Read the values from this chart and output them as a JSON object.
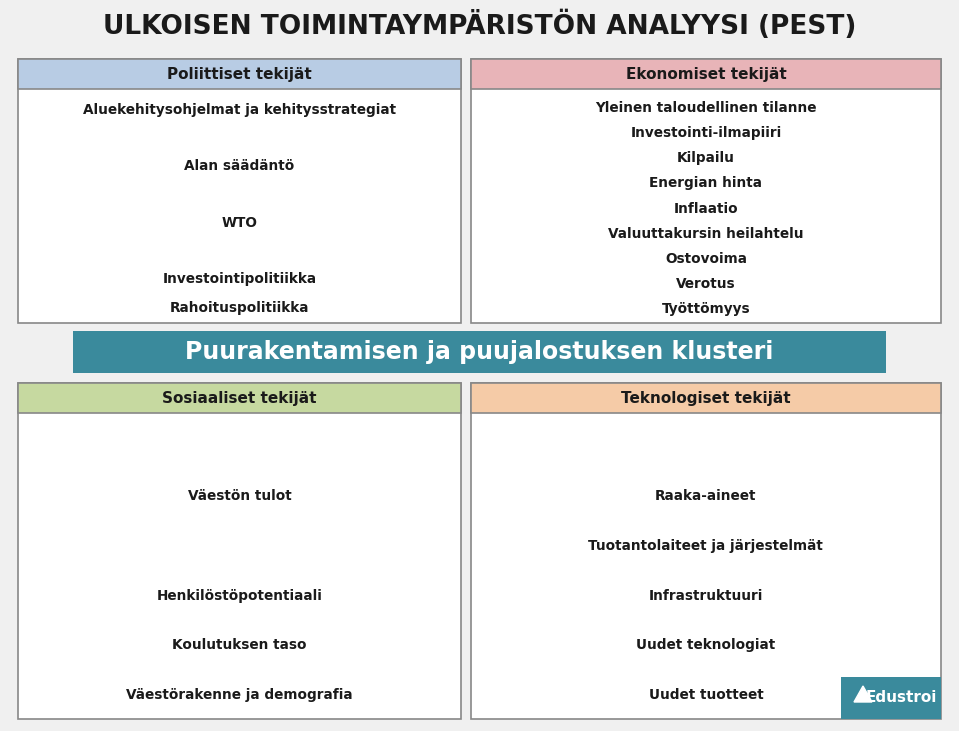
{
  "title": "ULKOISEN TOIMINTAYMPÄRISTÖN ANALYYSI (PEST)",
  "title_fontsize": 19,
  "bg_color": "#f0f0f0",
  "political_header": "Poliittiset tekijät",
  "political_header_bg": "#b8cce4",
  "political_items": [
    "Aluekehitysohjelmat ja kehitysstrategiat",
    "",
    "Alan säädäntö",
    "",
    "WTO",
    "",
    "Investointipolitiikka",
    "Rahoituspolitiikka"
  ],
  "political_box_bg": "#ffffff",
  "economic_header": "Ekonomiset tekijät",
  "economic_header_bg": "#e8b4b8",
  "economic_items": [
    "Yleinen taloudellinen tilanne",
    "Investointi-ilmapiiri",
    "Kilpailu",
    "Energian hinta",
    "Inflaatio",
    "Valuuttakursin heilahtelu",
    "Ostovoima",
    "Verotus",
    "Työttömyys"
  ],
  "economic_box_bg": "#ffffff",
  "cluster_text": "Puurakentamisen ja puujalostuksen klusteri",
  "cluster_bg": "#3a8a9c",
  "cluster_text_color": "#ffffff",
  "cluster_fontsize": 17,
  "social_header": "Sosiaaliset tekijät",
  "social_header_bg": "#c6d9a0",
  "social_items": [
    "",
    "Väestön tulot",
    "",
    "Henkilöstöpotentiaali",
    "Koulutuksen taso",
    "Väestörakenne ja demografia"
  ],
  "social_box_bg": "#ffffff",
  "tech_header": "Teknologiset tekijät",
  "tech_header_bg": "#f5cba7",
  "tech_items": [
    "",
    "Raaka-aineet",
    "Tuotantolaiteet ja järjestelmät",
    "Infrastruktuuri",
    "Uudet teknologiat",
    "Uudet tuotteet"
  ],
  "tech_box_bg": "#ffffff",
  "border_color": "#888888",
  "text_color": "#1a1a1a",
  "header_text_color": "#1a1a1a",
  "logo_bg": "#3a8a9c",
  "logo_text": "Edustroi",
  "logo_text_color": "#ffffff"
}
